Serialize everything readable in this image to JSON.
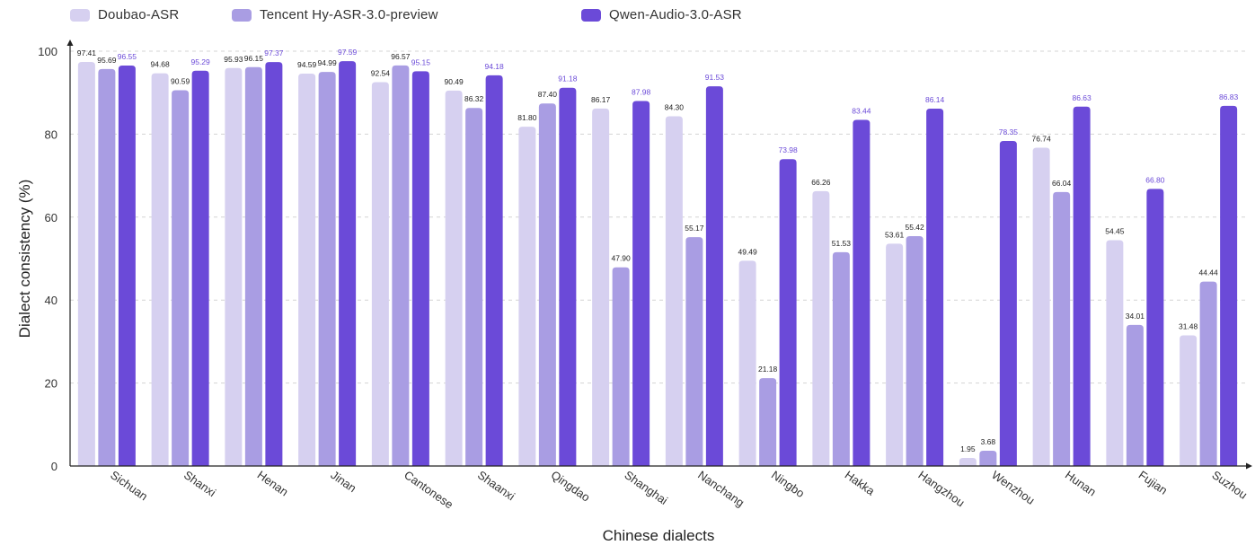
{
  "chart_data": {
    "type": "bar",
    "title": "",
    "xlabel": "Chinese dialects",
    "ylabel": "Dialect consistency (%)",
    "ylim": [
      0,
      100
    ],
    "yticks": [
      0,
      20,
      40,
      60,
      80,
      100
    ],
    "grid": "horizontal dashed",
    "legend_position": "top-left",
    "categories": [
      "Sichuan",
      "Shanxi",
      "Henan",
      "Jinan",
      "Cantonese",
      "Shaanxi",
      "Qingdao",
      "Shanghai",
      "Nanchang",
      "Ningbo",
      "Hakka",
      "Hangzhou",
      "Wenzhou",
      "Hunan",
      "Fujian",
      "Suzhou"
    ],
    "series": [
      {
        "name": "Doubao-ASR",
        "color": "#d6d0f0",
        "label_color": "#222222",
        "values": [
          97.41,
          94.68,
          95.93,
          94.59,
          92.54,
          90.49,
          81.8,
          86.17,
          84.3,
          49.49,
          66.26,
          53.61,
          1.95,
          76.74,
          54.45,
          31.48
        ],
        "labels": [
          "97.41",
          "94.68",
          "95.93",
          "94.59",
          "92.54",
          "90.49",
          "81.80",
          "86.17",
          "84.30",
          "49.49",
          "66.26",
          "53.61",
          "1.95",
          "76.74",
          "54.45",
          "31.48"
        ]
      },
      {
        "name": "Tencent Hy-ASR-3.0-preview",
        "color": "#a99de3",
        "label_color": "#222222",
        "values": [
          95.69,
          90.59,
          96.15,
          94.99,
          96.57,
          86.32,
          87.4,
          47.9,
          55.17,
          21.18,
          51.53,
          55.42,
          3.68,
          66.04,
          34.01,
          44.44
        ],
        "labels": [
          "95.69",
          "90.59",
          "96.15",
          "94.99",
          "96.57",
          "86.32",
          "87.40",
          "47.90",
          "55.17",
          "21.18",
          "51.53",
          "55.42",
          "3.68",
          "66.04",
          "34.01",
          "44.44"
        ]
      },
      {
        "name": "Qwen-Audio-3.0-ASR",
        "color": "#6b4ad8",
        "label_color": "#6b4ad8",
        "values": [
          96.55,
          95.29,
          97.37,
          97.59,
          95.15,
          94.18,
          91.18,
          87.98,
          91.53,
          73.98,
          83.44,
          86.14,
          78.35,
          86.63,
          66.8,
          86.83
        ],
        "labels": [
          "96.55",
          "95.29",
          "97.37",
          "97.59",
          "95.15",
          "94.18",
          "91.18",
          "87.98",
          "91.53",
          "73.98",
          "83.44",
          "86.14",
          "78.35",
          "86.63",
          "66.80",
          "86.83"
        ]
      }
    ]
  }
}
